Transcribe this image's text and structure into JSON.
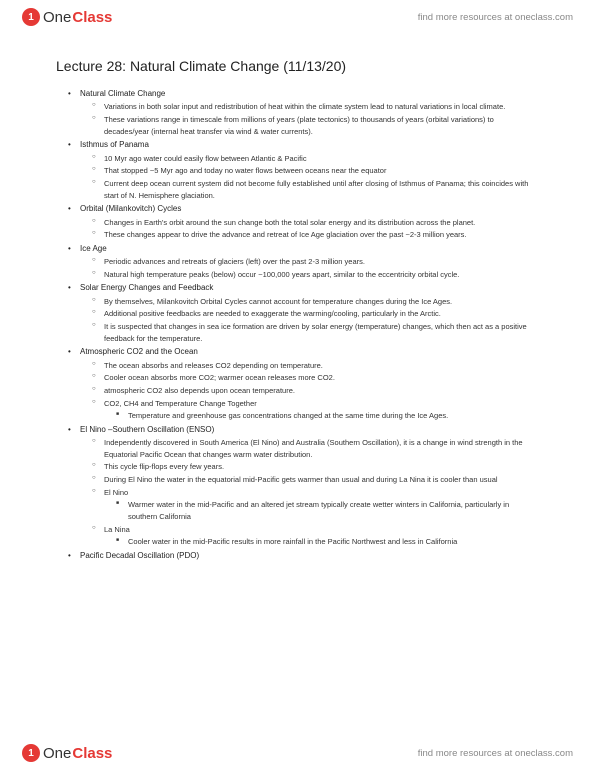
{
  "brand": {
    "badge": "1",
    "one": "One",
    "class": "Class",
    "tagline": "find more resources at oneclass.com"
  },
  "title": "Lecture 28: Natural Climate Change (11/13/20)",
  "sections": [
    {
      "heading": "Natural Climate Change",
      "items": [
        "Variations in both solar input and redistribution of heat within the climate system lead to natural variations in local climate.",
        "These variations range in timescale from millions of years (plate tectonics) to thousands of years (orbital variations) to decades/year (internal heat transfer via wind & water currents)."
      ]
    },
    {
      "heading": "Isthmus of Panama",
      "items": [
        "10 Myr ago water could easily flow between Atlantic & Pacific",
        "That stopped ~5 Myr ago and today no water flows between oceans near the equator",
        "Current deep ocean current system did not become fully established until after closing of Isthmus of Panama; this coincides with start of N. Hemisphere glaciation."
      ]
    },
    {
      "heading": "Orbital (Milankovitch) Cycles",
      "items": [
        "Changes in Earth's orbit around the sun change both the total solar energy and its distribution across the planet.",
        "These changes appear to drive the advance and retreat of Ice Age glaciation over the past ~2-3 million years."
      ]
    },
    {
      "heading": "Ice Age",
      "items": [
        "Periodic advances and retreats of glaciers (left) over the past 2-3 million years.",
        "Natural high temperature peaks (below) occur ~100,000 years apart, similar to the eccentricity orbital cycle."
      ]
    },
    {
      "heading": "Solar Energy Changes and Feedback",
      "items": [
        "By themselves, Milankovitch Orbital Cycles cannot account for temperature changes during the Ice Ages.",
        "Additional positive feedbacks are needed to exaggerate the warming/cooling, particularly in the Arctic.",
        "It is suspected that changes in sea ice formation are driven by solar energy (temperature) changes, which then act as a positive feedback for the temperature."
      ]
    },
    {
      "heading": "Atmospheric CO2 and the Ocean",
      "items": [
        "The ocean absorbs and releases CO2 depending on temperature.",
        "Cooler ocean absorbs more CO2; warmer ocean releases more CO2.",
        "atmospheric CO2 also depends upon ocean temperature.",
        {
          "text": "CO2, CH4 and Temperature Change Together",
          "sub": [
            "Temperature and greenhouse gas concentrations changed at the same time during the Ice Ages."
          ]
        }
      ]
    },
    {
      "heading": "El Nino –Southern Oscillation (ENSO)",
      "items": [
        "Independently discovered in South America (El Nino) and Australia (Southern Oscillation), it is a change in wind strength in the Equatorial Pacific Ocean that changes warm water distribution.",
        "This cycle flip-flops every few years.",
        "During El Nino the water in the equatorial mid-Pacific gets warmer than usual and during La Nina it is cooler than usual",
        {
          "text": "El Nino",
          "sub": [
            "Warmer water in the mid-Pacific and an altered jet stream typically create wetter winters in California, particularly in southern California"
          ]
        },
        {
          "text": "La Nina",
          "sub": [
            "Cooler water in the mid-Pacific results in more rainfall in the Pacific Northwest and less in California"
          ]
        }
      ]
    },
    {
      "heading": "Pacific Decadal Oscillation (PDO)",
      "items": []
    }
  ]
}
